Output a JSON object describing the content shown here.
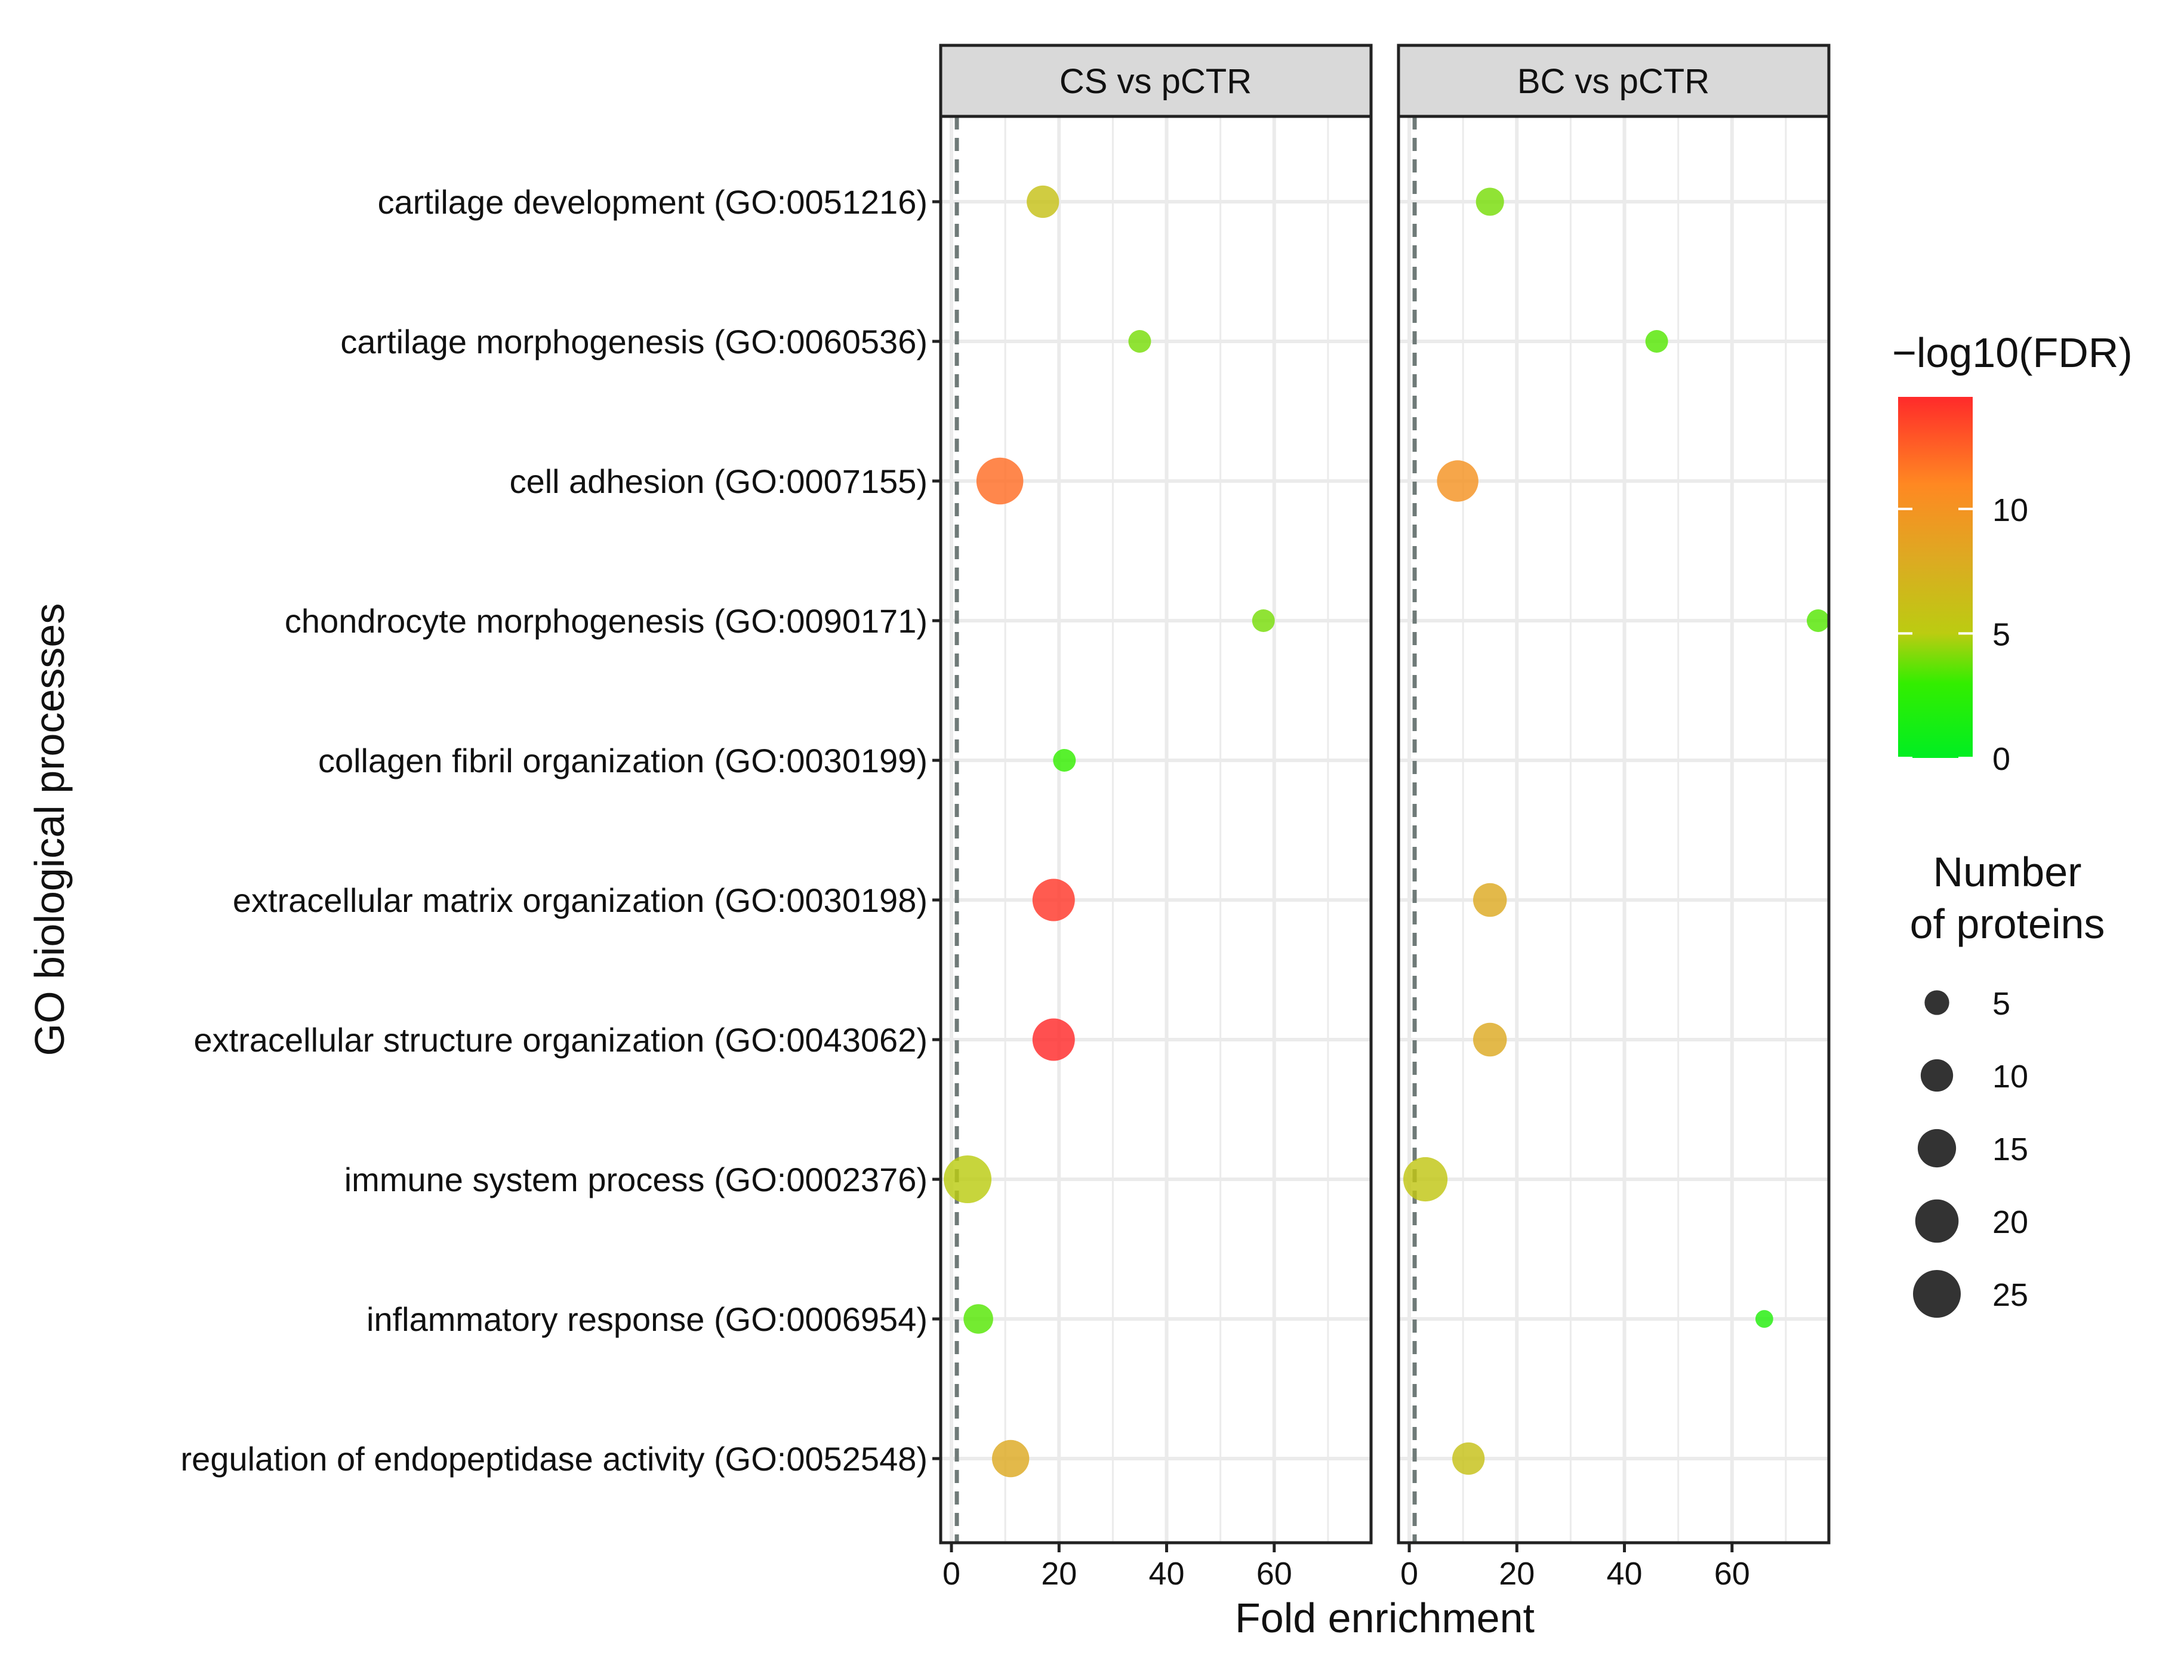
{
  "chart_data": {
    "type": "scatter",
    "subtype": "faceted-dot-plot",
    "xlabel": "Fold enrichment",
    "ylabel": "GO biological processes",
    "xlim": [
      -2,
      78
    ],
    "x_ticks": [
      0,
      20,
      40,
      60
    ],
    "x_tick_labels": [
      "0",
      "20",
      "40",
      "60"
    ],
    "reference_line_x": 1,
    "grid": true,
    "legend_position": "right",
    "categories": [
      "cartilage development (GO:0051216)",
      "cartilage morphogenesis (GO:0060536)",
      "cell adhesion (GO:0007155)",
      "chondrocyte morphogenesis (GO:0090171)",
      "collagen fibril organization (GO:0030199)",
      "extracellular matrix organization (GO:0030198)",
      "extracellular structure organization (GO:0043062)",
      "immune system process (GO:0002376)",
      "inflammatory response (GO:0006954)",
      "regulation of endopeptidase activity (GO:0052548)"
    ],
    "facets": [
      {
        "title": "CS vs pCTR",
        "points": [
          {
            "category": 0,
            "fold_enrichment": 17,
            "neg_log10_fdr": 6,
            "n_proteins": 10
          },
          {
            "category": 1,
            "fold_enrichment": 35,
            "neg_log10_fdr": 4,
            "n_proteins": 4
          },
          {
            "category": 2,
            "fold_enrichment": 9,
            "neg_log10_fdr": 12,
            "n_proteins": 24
          },
          {
            "category": 3,
            "fold_enrichment": 58,
            "neg_log10_fdr": 4,
            "n_proteins": 4
          },
          {
            "category": 4,
            "fold_enrichment": 21,
            "neg_log10_fdr": 3,
            "n_proteins": 4
          },
          {
            "category": 5,
            "fold_enrichment": 19,
            "neg_log10_fdr": 14,
            "n_proteins": 19
          },
          {
            "category": 6,
            "fold_enrichment": 19,
            "neg_log10_fdr": 14.5,
            "n_proteins": 19
          },
          {
            "category": 7,
            "fold_enrichment": 3,
            "neg_log10_fdr": 5,
            "n_proteins": 25
          },
          {
            "category": 8,
            "fold_enrichment": 5,
            "neg_log10_fdr": 3.5,
            "n_proteins": 8
          },
          {
            "category": 9,
            "fold_enrichment": 11,
            "neg_log10_fdr": 8,
            "n_proteins": 14
          }
        ]
      },
      {
        "title": "BC vs pCTR",
        "points": [
          {
            "category": 0,
            "fold_enrichment": 15,
            "neg_log10_fdr": 4,
            "n_proteins": 7
          },
          {
            "category": 1,
            "fold_enrichment": 46,
            "neg_log10_fdr": 3.5,
            "n_proteins": 4
          },
          {
            "category": 2,
            "fold_enrichment": 9,
            "neg_log10_fdr": 10,
            "n_proteins": 18
          },
          {
            "category": 3,
            "fold_enrichment": 76,
            "neg_log10_fdr": 3.5,
            "n_proteins": 4
          },
          {
            "category": 5,
            "fold_enrichment": 15,
            "neg_log10_fdr": 8,
            "n_proteins": 11
          },
          {
            "category": 6,
            "fold_enrichment": 15,
            "neg_log10_fdr": 8,
            "n_proteins": 11
          },
          {
            "category": 7,
            "fold_enrichment": 3,
            "neg_log10_fdr": 5.5,
            "n_proteins": 21
          },
          {
            "category": 8,
            "fold_enrichment": 66,
            "neg_log10_fdr": 2,
            "n_proteins": 2
          },
          {
            "category": 9,
            "fold_enrichment": 11,
            "neg_log10_fdr": 6,
            "n_proteins": 10
          }
        ]
      }
    ],
    "color_legend": {
      "title": "−log10(FDR)",
      "range": [
        0,
        14.5
      ],
      "ticks": [
        0,
        5,
        10
      ],
      "tick_labels": [
        "0",
        "5",
        "10"
      ],
      "colors": [
        {
          "value": 0,
          "color": "#00ee22"
        },
        {
          "value": 3,
          "color": "#33ee00"
        },
        {
          "value": 5,
          "color": "#bbcc11"
        },
        {
          "value": 8,
          "color": "#ddaa22"
        },
        {
          "value": 11,
          "color": "#ff8822"
        },
        {
          "value": 14.5,
          "color": "#ff2a2a"
        }
      ]
    },
    "size_legend": {
      "title_line1": "Number",
      "title_line2": "of proteins",
      "values": [
        5,
        10,
        15,
        20,
        25
      ],
      "labels": [
        "5",
        "10",
        "15",
        "20",
        "25"
      ]
    }
  },
  "style": {
    "panel_border": "#222222",
    "strip_fill": "#d9d9d9",
    "grid_color": "#ebebeb",
    "refline_color": "#6f7a78",
    "legend_dot": "#333333"
  }
}
